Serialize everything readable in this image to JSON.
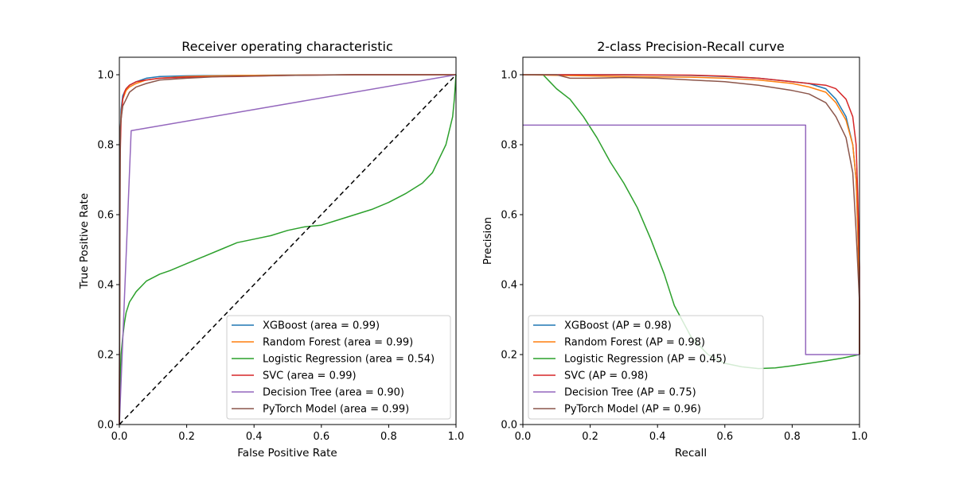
{
  "colors": {
    "blue": "#1f77b4",
    "orange": "#ff7f0e",
    "green": "#2ca02c",
    "red": "#d62728",
    "purple": "#9467bd",
    "brown": "#8c564b",
    "diagonal": "#000000"
  },
  "chart_data": [
    {
      "type": "line",
      "title": "Receiver operating characteristic",
      "xlabel": "False Positive Rate",
      "ylabel": "True Positive Rate",
      "xlim": [
        0,
        1
      ],
      "ylim": [
        0,
        1.05
      ],
      "xticks": [
        "0.0",
        "0.2",
        "0.4",
        "0.6",
        "0.8",
        "1.0"
      ],
      "yticks": [
        "0.0",
        "0.2",
        "0.4",
        "0.6",
        "0.8",
        "1.0"
      ],
      "grid": false,
      "legend_position": "lower-right",
      "series": [
        {
          "name": "XGBoost (area = 0.99)",
          "color": "blue",
          "x": [
            0,
            0.002,
            0.005,
            0.01,
            0.02,
            0.03,
            0.05,
            0.08,
            0.12,
            0.2,
            0.35,
            0.5,
            0.7,
            1.0
          ],
          "y": [
            0,
            0.8,
            0.9,
            0.94,
            0.96,
            0.97,
            0.98,
            0.99,
            0.995,
            0.997,
            0.998,
            0.999,
            1.0,
            1.0
          ]
        },
        {
          "name": "Random Forest (area = 0.99)",
          "color": "orange",
          "x": [
            0,
            0.002,
            0.005,
            0.01,
            0.02,
            0.03,
            0.05,
            0.08,
            0.12,
            0.2,
            0.35,
            0.5,
            0.7,
            1.0
          ],
          "y": [
            0,
            0.78,
            0.88,
            0.93,
            0.955,
            0.965,
            0.975,
            0.985,
            0.99,
            0.995,
            0.998,
            0.999,
            1.0,
            1.0
          ]
        },
        {
          "name": "Logistic Regression (area = 0.54)",
          "color": "green",
          "x": [
            0,
            0.002,
            0.005,
            0.01,
            0.015,
            0.02,
            0.03,
            0.05,
            0.08,
            0.12,
            0.15,
            0.2,
            0.25,
            0.3,
            0.35,
            0.4,
            0.45,
            0.5,
            0.55,
            0.6,
            0.65,
            0.7,
            0.75,
            0.8,
            0.85,
            0.9,
            0.93,
            0.95,
            0.97,
            0.98,
            0.99,
            0.995,
            1.0
          ],
          "y": [
            0,
            0.1,
            0.2,
            0.25,
            0.29,
            0.32,
            0.35,
            0.38,
            0.41,
            0.43,
            0.44,
            0.46,
            0.48,
            0.5,
            0.52,
            0.53,
            0.54,
            0.555,
            0.565,
            0.57,
            0.585,
            0.6,
            0.615,
            0.635,
            0.66,
            0.69,
            0.72,
            0.76,
            0.8,
            0.84,
            0.88,
            0.93,
            1.0
          ]
        },
        {
          "name": "SVC (area = 0.99)",
          "color": "red",
          "x": [
            0,
            0.002,
            0.005,
            0.01,
            0.015,
            0.02,
            0.03,
            0.05,
            0.08,
            0.12,
            0.2,
            0.35,
            0.5,
            0.7,
            1.0
          ],
          "y": [
            0,
            0.75,
            0.87,
            0.93,
            0.95,
            0.96,
            0.97,
            0.98,
            0.985,
            0.99,
            0.993,
            0.995,
            0.998,
            1.0,
            1.0
          ]
        },
        {
          "name": "Decision Tree (area = 0.90)",
          "color": "purple",
          "x": [
            0,
            0.035,
            1.0
          ],
          "y": [
            0,
            0.84,
            1.0
          ]
        },
        {
          "name": "PyTorch Model (area = 0.99)",
          "color": "brown",
          "x": [
            0,
            0.003,
            0.006,
            0.01,
            0.02,
            0.03,
            0.05,
            0.08,
            0.12,
            0.2,
            0.3,
            0.5,
            0.7,
            1.0
          ],
          "y": [
            0,
            0.85,
            0.88,
            0.91,
            0.93,
            0.95,
            0.965,
            0.975,
            0.985,
            0.99,
            0.995,
            0.998,
            1.0,
            1.0
          ]
        },
        {
          "name": "",
          "color": "diagonal",
          "dashed": true,
          "x": [
            0,
            1
          ],
          "y": [
            0,
            1
          ]
        }
      ]
    },
    {
      "type": "line",
      "title": "2-class Precision-Recall curve",
      "xlabel": "Recall",
      "ylabel": "Precision",
      "xlim": [
        0,
        1
      ],
      "ylim": [
        0,
        1.05
      ],
      "xticks": [
        "0.0",
        "0.2",
        "0.4",
        "0.6",
        "0.8",
        "1.0"
      ],
      "yticks": [
        "0.0",
        "0.2",
        "0.4",
        "0.6",
        "0.8",
        "1.0"
      ],
      "grid": false,
      "legend_position": "lower-left",
      "series": [
        {
          "name": "XGBoost (AP = 0.98)",
          "color": "blue",
          "x": [
            0,
            0.3,
            0.5,
            0.6,
            0.7,
            0.8,
            0.85,
            0.9,
            0.93,
            0.96,
            0.98,
            0.99,
            0.995,
            1.0,
            1.0
          ],
          "y": [
            1.0,
            1.0,
            0.998,
            0.995,
            0.99,
            0.98,
            0.975,
            0.96,
            0.93,
            0.88,
            0.8,
            0.7,
            0.55,
            0.35,
            0.2
          ]
        },
        {
          "name": "Random Forest (AP = 0.98)",
          "color": "orange",
          "x": [
            0,
            0.3,
            0.5,
            0.6,
            0.7,
            0.8,
            0.85,
            0.9,
            0.93,
            0.96,
            0.98,
            0.99,
            0.995,
            1.0,
            1.0
          ],
          "y": [
            1.0,
            0.995,
            0.993,
            0.99,
            0.985,
            0.975,
            0.965,
            0.95,
            0.92,
            0.87,
            0.8,
            0.7,
            0.55,
            0.35,
            0.2
          ]
        },
        {
          "name": "Logistic Regression (AP = 0.45)",
          "color": "green",
          "x": [
            0,
            0.06,
            0.08,
            0.1,
            0.14,
            0.18,
            0.22,
            0.26,
            0.3,
            0.34,
            0.38,
            0.42,
            0.45,
            0.5,
            0.55,
            0.6,
            0.65,
            0.7,
            0.75,
            0.8,
            0.85,
            0.9,
            0.95,
            1.0
          ],
          "y": [
            1.0,
            1.0,
            0.98,
            0.96,
            0.93,
            0.88,
            0.82,
            0.75,
            0.69,
            0.62,
            0.53,
            0.43,
            0.34,
            0.25,
            0.2,
            0.175,
            0.165,
            0.16,
            0.162,
            0.168,
            0.175,
            0.182,
            0.19,
            0.2
          ]
        },
        {
          "name": "SVC (AP = 0.98)",
          "color": "red",
          "x": [
            0,
            0.3,
            0.5,
            0.6,
            0.7,
            0.8,
            0.85,
            0.9,
            0.93,
            0.96,
            0.98,
            0.99,
            0.995,
            1.0,
            1.0
          ],
          "y": [
            1.0,
            1.0,
            0.999,
            0.996,
            0.99,
            0.98,
            0.975,
            0.97,
            0.96,
            0.93,
            0.88,
            0.8,
            0.65,
            0.45,
            0.2
          ]
        },
        {
          "name": "Decision Tree (AP = 0.75)",
          "color": "purple",
          "x": [
            0,
            0.84,
            0.84,
            1.0
          ],
          "y": [
            0.856,
            0.856,
            0.2,
            0.2
          ]
        },
        {
          "name": "PyTorch Model (AP = 0.96)",
          "color": "brown",
          "x": [
            0,
            0.1,
            0.14,
            0.2,
            0.3,
            0.4,
            0.5,
            0.6,
            0.7,
            0.8,
            0.85,
            0.9,
            0.93,
            0.96,
            0.98,
            0.99,
            1.0,
            1.0
          ],
          "y": [
            1.0,
            1.0,
            0.99,
            0.99,
            0.992,
            0.99,
            0.985,
            0.98,
            0.97,
            0.955,
            0.945,
            0.92,
            0.88,
            0.82,
            0.72,
            0.55,
            0.35,
            0.2
          ]
        }
      ]
    }
  ]
}
